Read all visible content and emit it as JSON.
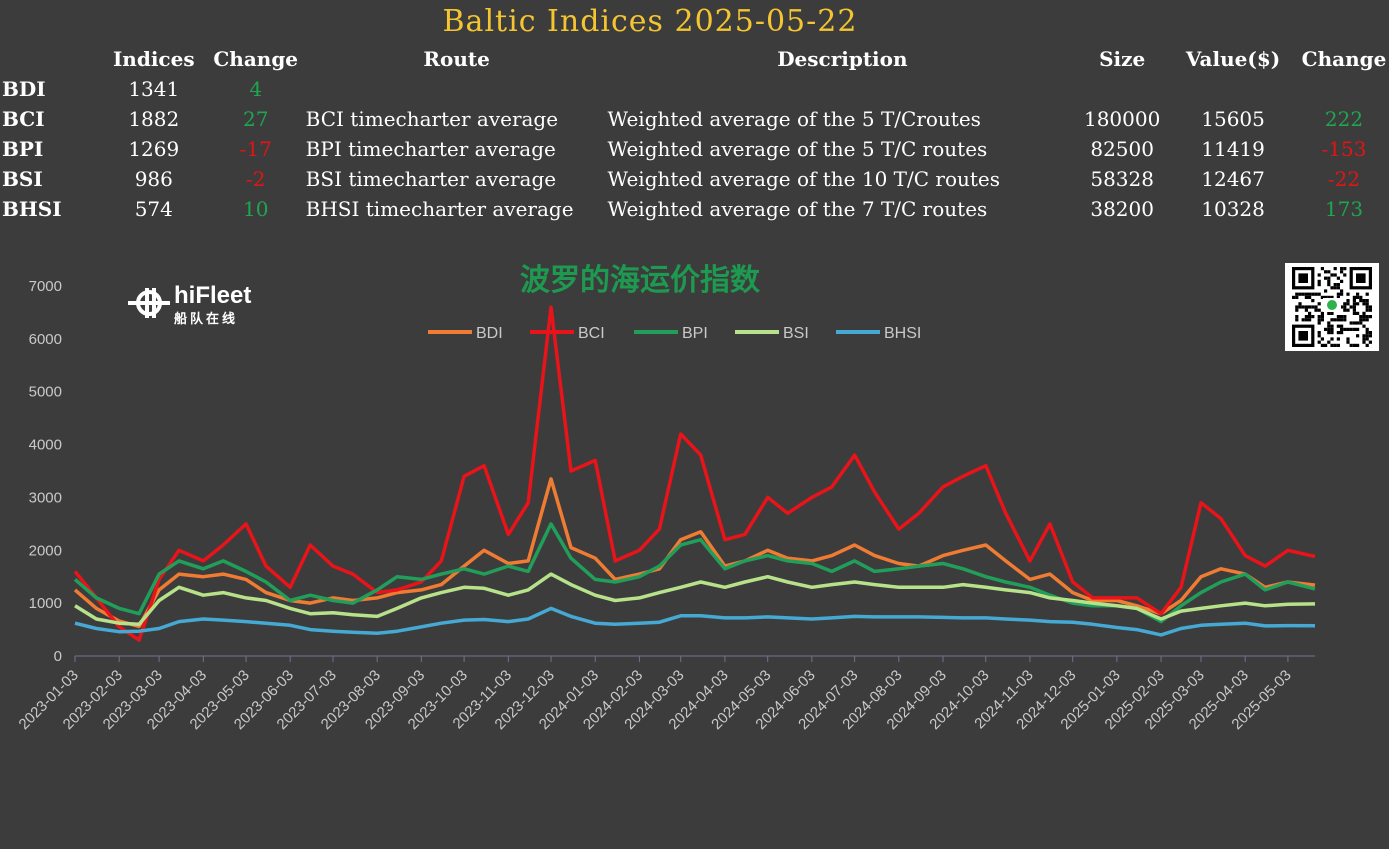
{
  "title": "Baltic Indices 2025-05-22",
  "cn_title": "波罗的海运价指数",
  "logo": {
    "name": "hiFleet",
    "sub": "船队在线"
  },
  "table": {
    "headers": [
      "Indices",
      "Change",
      "Route",
      "Description",
      "Size",
      "Value($)",
      "Change"
    ],
    "rows": [
      {
        "name": "BDI",
        "index": "1341",
        "change": "4",
        "dir": "pos",
        "route": "",
        "desc": "",
        "size": "",
        "value": "",
        "vchange": "",
        "vdir": ""
      },
      {
        "name": "BCI",
        "index": "1882",
        "change": "27",
        "dir": "pos",
        "route": "BCI timecharter average",
        "desc": "Weighted average of the 5 T/Croutes",
        "size": "180000",
        "value": "15605",
        "vchange": "222",
        "vdir": "pos"
      },
      {
        "name": "BPI",
        "index": "1269",
        "change": "-17",
        "dir": "neg",
        "route": "BPI timecharter average",
        "desc": "Weighted average of the 5 T/C routes",
        "size": "82500",
        "value": "11419",
        "vchange": "-153",
        "vdir": "neg"
      },
      {
        "name": "BSI",
        "index": "986",
        "change": "-2",
        "dir": "neg",
        "route": "BSI timecharter average",
        "desc": "Weighted average of the 10 T/C routes",
        "size": "58328",
        "value": "12467",
        "vchange": "-22",
        "vdir": "neg"
      },
      {
        "name": "BHSI",
        "index": "574",
        "change": "10",
        "dir": "pos",
        "route": "BHSI timecharter average",
        "desc": "Weighted average of the 7 T/C routes",
        "size": "38200",
        "value": "10328",
        "vchange": "173",
        "vdir": "pos"
      }
    ]
  },
  "colors": {
    "pos": "#1fa650",
    "neg": "#e41414",
    "title": "#f4c531"
  },
  "chart_data": {
    "type": "line",
    "ylim": [
      0,
      7000
    ],
    "yticks": [
      0,
      1000,
      2000,
      3000,
      4000,
      5000,
      6000,
      7000
    ],
    "grid": false,
    "legend_position": "top-center",
    "x_ticks": [
      "2023-01-03",
      "2023-02-03",
      "2023-03-03",
      "2023-04-03",
      "2023-05-03",
      "2023-06-03",
      "2023-07-03",
      "2023-08-03",
      "2023-09-03",
      "2023-10-03",
      "2023-11-03",
      "2023-12-03",
      "2024-01-03",
      "2024-02-03",
      "2024-03-03",
      "2024-04-03",
      "2024-05-03",
      "2024-06-03",
      "2024-07-03",
      "2024-08-03",
      "2024-09-03",
      "2024-10-03",
      "2024-11-03",
      "2024-12-03",
      "2025-01-03",
      "2025-02-03",
      "2025-03-03",
      "2025-04-03",
      "2025-05-03"
    ],
    "x": [
      "2023-01-03",
      "2023-01-18",
      "2023-02-03",
      "2023-02-17",
      "2023-03-03",
      "2023-03-17",
      "2023-04-03",
      "2023-04-17",
      "2023-05-03",
      "2023-05-17",
      "2023-06-03",
      "2023-06-17",
      "2023-07-03",
      "2023-07-17",
      "2023-08-03",
      "2023-08-17",
      "2023-09-03",
      "2023-09-17",
      "2023-10-03",
      "2023-10-17",
      "2023-11-03",
      "2023-11-17",
      "2023-12-03",
      "2023-12-17",
      "2024-01-03",
      "2024-01-17",
      "2024-02-03",
      "2024-02-17",
      "2024-03-03",
      "2024-03-17",
      "2024-04-03",
      "2024-04-17",
      "2024-05-03",
      "2024-05-17",
      "2024-06-03",
      "2024-06-17",
      "2024-07-03",
      "2024-07-17",
      "2024-08-03",
      "2024-08-17",
      "2024-09-03",
      "2024-09-17",
      "2024-10-03",
      "2024-10-17",
      "2024-11-03",
      "2024-11-17",
      "2024-12-03",
      "2024-12-17",
      "2025-01-03",
      "2025-01-17",
      "2025-02-03",
      "2025-02-17",
      "2025-03-03",
      "2025-03-17",
      "2025-04-03",
      "2025-04-17",
      "2025-05-03",
      "2025-05-22"
    ],
    "series": [
      {
        "name": "BDI",
        "color": "#ef7c32",
        "values": [
          1250,
          900,
          660,
          560,
          1250,
          1550,
          1500,
          1550,
          1450,
          1200,
          1050,
          1000,
          1100,
          1050,
          1100,
          1200,
          1250,
          1350,
          1700,
          2000,
          1750,
          1800,
          3350,
          2050,
          1850,
          1450,
          1550,
          1650,
          2200,
          2350,
          1700,
          1800,
          2000,
          1850,
          1800,
          1900,
          2100,
          1900,
          1750,
          1700,
          1900,
          2000,
          2100,
          1800,
          1450,
          1550,
          1200,
          1050,
          1050,
          950,
          800,
          1050,
          1500,
          1650,
          1550,
          1300,
          1400,
          1341
        ]
      },
      {
        "name": "BCI",
        "color": "#e8141a",
        "values": [
          1600,
          1100,
          550,
          300,
          1450,
          2000,
          1800,
          2100,
          2500,
          1700,
          1300,
          2100,
          1700,
          1550,
          1200,
          1250,
          1400,
          1800,
          3400,
          3600,
          2300,
          2900,
          6600,
          3500,
          3700,
          1800,
          2000,
          2400,
          4200,
          3800,
          2200,
          2300,
          3000,
          2700,
          3000,
          3200,
          3800,
          3100,
          2400,
          2700,
          3200,
          3400,
          3600,
          2700,
          1800,
          2500,
          1400,
          1100,
          1100,
          1100,
          800,
          1300,
          2900,
          2600,
          1900,
          1700,
          2000,
          1882
        ]
      },
      {
        "name": "BPI",
        "color": "#229e5b",
        "values": [
          1450,
          1100,
          900,
          800,
          1550,
          1800,
          1650,
          1800,
          1600,
          1400,
          1050,
          1150,
          1050,
          1000,
          1250,
          1500,
          1450,
          1550,
          1650,
          1550,
          1700,
          1600,
          2500,
          1850,
          1450,
          1400,
          1500,
          1700,
          2100,
          2200,
          1650,
          1800,
          1900,
          1800,
          1750,
          1600,
          1800,
          1600,
          1650,
          1700,
          1750,
          1650,
          1500,
          1400,
          1300,
          1150,
          1000,
          950,
          950,
          900,
          650,
          950,
          1200,
          1400,
          1550,
          1250,
          1400,
          1269
        ]
      },
      {
        "name": "BSI",
        "color": "#b7e28a",
        "values": [
          950,
          700,
          620,
          600,
          1050,
          1300,
          1150,
          1200,
          1100,
          1050,
          900,
          800,
          820,
          780,
          750,
          900,
          1100,
          1200,
          1300,
          1280,
          1150,
          1250,
          1550,
          1350,
          1150,
          1050,
          1100,
          1200,
          1300,
          1400,
          1300,
          1400,
          1500,
          1400,
          1300,
          1350,
          1400,
          1350,
          1300,
          1300,
          1300,
          1350,
          1300,
          1250,
          1200,
          1100,
          1050,
          1000,
          950,
          900,
          700,
          850,
          900,
          950,
          1000,
          950,
          980,
          986
        ]
      },
      {
        "name": "BHSI",
        "color": "#45a9d4",
        "values": [
          620,
          520,
          460,
          470,
          520,
          650,
          700,
          680,
          650,
          620,
          580,
          500,
          470,
          450,
          430,
          470,
          550,
          620,
          680,
          690,
          650,
          700,
          900,
          750,
          620,
          600,
          620,
          640,
          760,
          760,
          720,
          720,
          740,
          720,
          700,
          720,
          750,
          740,
          740,
          740,
          730,
          720,
          720,
          700,
          680,
          650,
          640,
          600,
          540,
          500,
          400,
          520,
          580,
          600,
          620,
          570,
          575,
          574
        ]
      }
    ]
  }
}
